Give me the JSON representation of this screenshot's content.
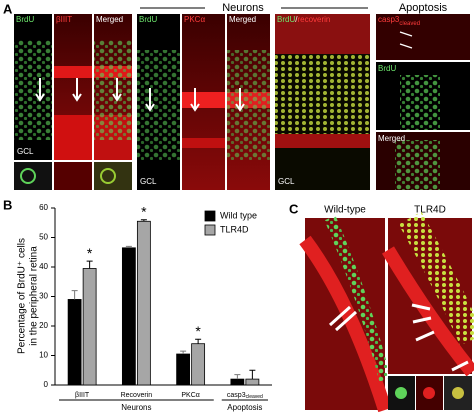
{
  "panel_a": {
    "label": "A",
    "heading_neurons": "Neurons",
    "heading_apoptosis": "Apoptosis",
    "group1": {
      "tiles": [
        "BrdU",
        "βIIIT",
        "Merged"
      ],
      "gcl": "GCL"
    },
    "group2": {
      "tiles": [
        "BrdU",
        "PKCα",
        "Merged"
      ],
      "gcl": "GCL"
    },
    "group3": {
      "green": "BrdU",
      "slash": "/",
      "red": "recoverin",
      "gcl": "GCL"
    },
    "apoptosis": {
      "casp3": "casp3",
      "casp3_sub": "cleaved",
      "brdu": "BrdU",
      "merged": "Merged"
    }
  },
  "panel_c": {
    "label": "C",
    "left": "Wild-type",
    "right": "TLR4D"
  },
  "chart_data": {
    "type": "bar",
    "panel_label": "B",
    "ylabel_lines": [
      "Percentage of BrdU⁺ cells",
      "in the peripheral retina"
    ],
    "categories": [
      "βIIIT",
      "Recoverin",
      "PKCα",
      "casp3"
    ],
    "category_subscripts": {
      "3": "cleaved"
    },
    "groups": [
      "Neurons",
      "Apoptosis"
    ],
    "series": [
      {
        "name": "Wild type",
        "color": "#000000",
        "values": [
          29,
          46.5,
          10.5,
          2
        ],
        "errors": [
          3,
          0.5,
          1,
          1.5
        ]
      },
      {
        "name": "TLR4D",
        "color": "#a6a6a6",
        "values": [
          39.5,
          55.5,
          14,
          2
        ],
        "errors": [
          2.5,
          0.5,
          1.5,
          3
        ],
        "marks": {
          "0": "*",
          "1": "*",
          "2": "*"
        }
      }
    ],
    "ylim": [
      0,
      60
    ],
    "yticks": [
      0,
      10,
      20,
      30,
      40,
      50,
      60
    ]
  }
}
